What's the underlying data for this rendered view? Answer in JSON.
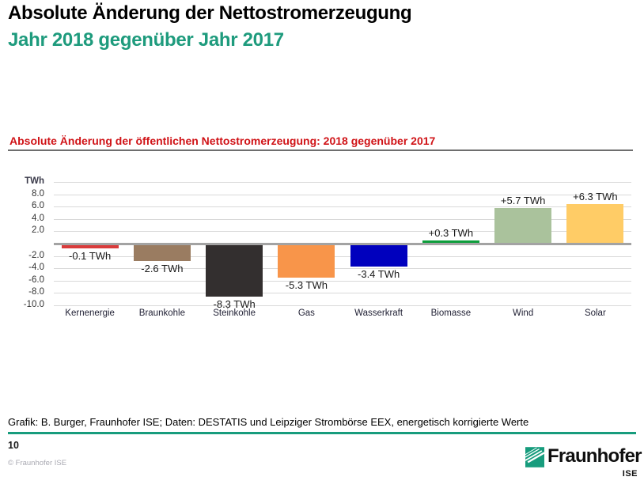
{
  "header": {
    "title": "Absolute Änderung der Nettostromerzeugung",
    "subtitle": "Jahr 2018 gegenüber Jahr 2017"
  },
  "chart_caption": "Absolute Änderung der öffentlichen Nettostromerzeugung: 2018 gegenüber 2017",
  "chart_data": {
    "type": "bar",
    "title": "Absolute Änderung der öffentlichen Nettostromerzeugung: 2018 gegenüber 2017",
    "unit": "TWh",
    "categories": [
      "Kernenergie",
      "Braunkohle",
      "Steinkohle",
      "Gas",
      "Wasserkraft",
      "Biomasse",
      "Wind",
      "Solar"
    ],
    "values": [
      -0.1,
      -2.6,
      -8.3,
      -5.3,
      -3.4,
      0.3,
      5.7,
      6.3
    ],
    "bar_labels": [
      "-0.1 TWh",
      "-2.6 TWh",
      "-8.3 TWh",
      "-5.3 TWh",
      "-3.4 TWh",
      "+0.3 TWh",
      "+5.7 TWh",
      "+6.3 TWh"
    ],
    "bar_colors": [
      "#d93b3b",
      "#9a7c61",
      "#332f2f",
      "#f8954a",
      "#0000be",
      "#0d9e3b",
      "#aac29c",
      "#ffcc66"
    ],
    "ylim": [
      -10,
      10
    ],
    "yticks": [
      {
        "value": 10,
        "label": "TWh"
      },
      {
        "value": 8,
        "label": "8.0"
      },
      {
        "value": 6,
        "label": "6.0"
      },
      {
        "value": 4,
        "label": "4.0"
      },
      {
        "value": 2,
        "label": "2.0"
      },
      {
        "value": 0,
        "label": ""
      },
      {
        "value": -2,
        "label": "-2.0"
      },
      {
        "value": -4,
        "label": "-4.0"
      },
      {
        "value": -6,
        "label": "-6.0"
      },
      {
        "value": -8,
        "label": "-8.0"
      },
      {
        "value": -10,
        "label": "-10.0"
      }
    ],
    "grid": true,
    "legend": "none"
  },
  "footer": {
    "source": "Grafik: B. Burger, Fraunhofer ISE; Daten: DESTATIS und Leipziger Strombörse EEX, energetisch korrigierte Werte",
    "page_number": "10",
    "copyright": "© Fraunhofer ISE",
    "logo_text": "Fraunhofer",
    "logo_institute": "ISE"
  },
  "colors": {
    "accent_teal": "#179c7d",
    "subtitle_teal": "#1e9b7d",
    "caption_red": "#d01317",
    "gridline": "#d9d9d9",
    "zero_line": "#a3a3a3"
  }
}
